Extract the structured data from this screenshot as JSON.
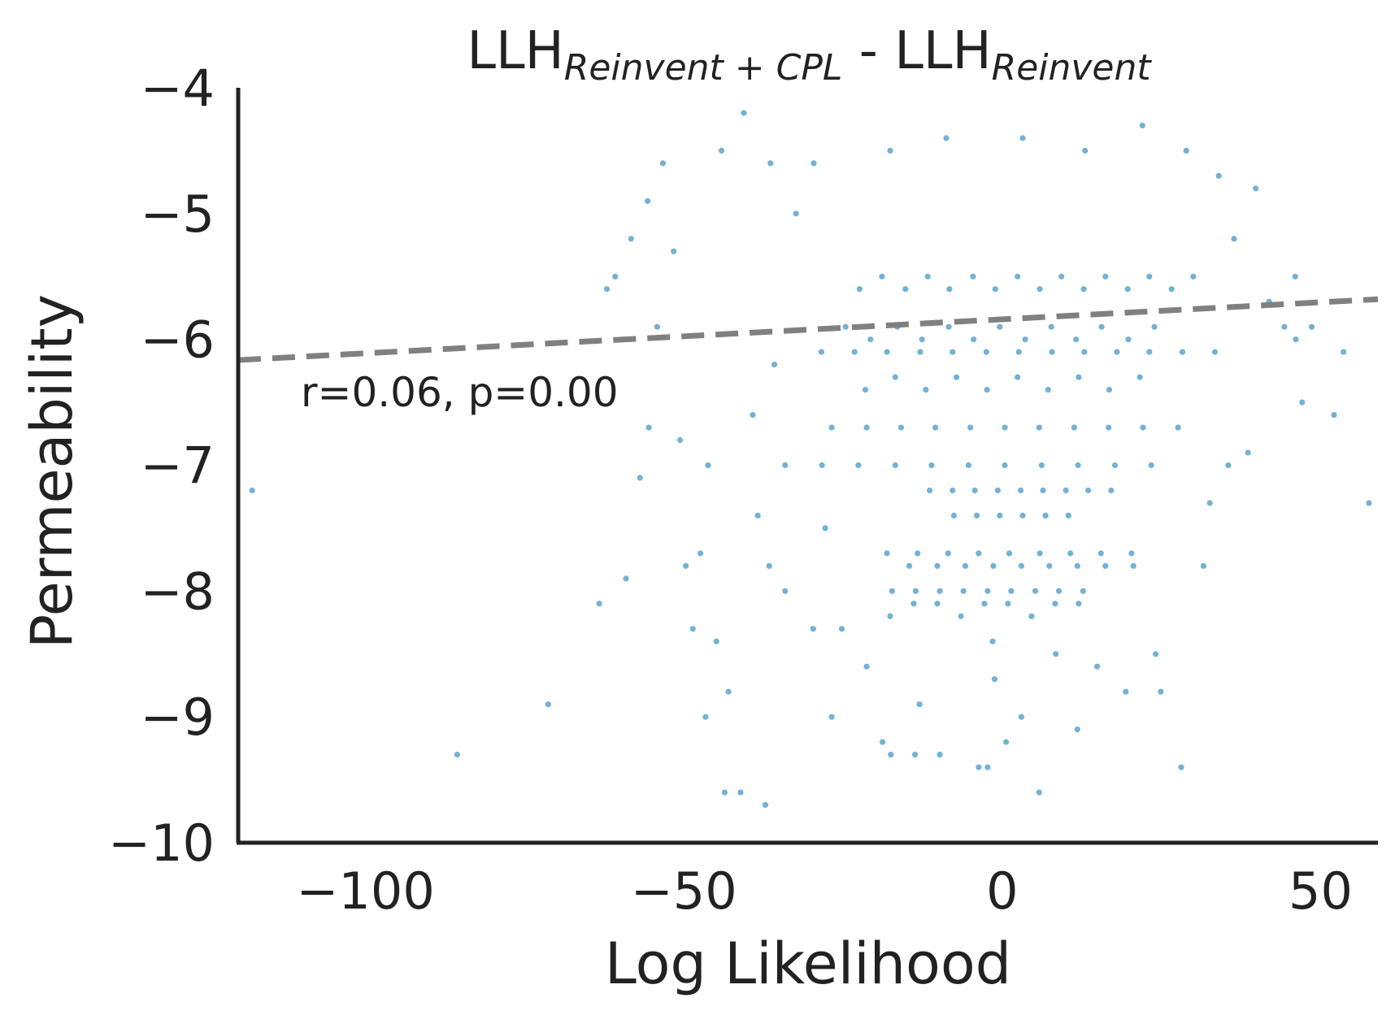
{
  "chart_data": {
    "type": "scatter",
    "title_main": "LLH",
    "title_sub_1": "Reinvent + CPL",
    "title_sep": " - LLH",
    "title_sub_2": "Reinvent",
    "xlabel": "Log Likelihood",
    "ylabel": "Permeability",
    "xlim": [
      -120,
      59
    ],
    "ylim": [
      -10,
      -4
    ],
    "xticks": [
      -100,
      -50,
      0,
      50
    ],
    "xtick_labels": [
      "−100",
      "−50",
      "0",
      "50"
    ],
    "yticks": [
      -4,
      -5,
      -6,
      -7,
      -8,
      -9,
      -10
    ],
    "ytick_labels": [
      "−4",
      "−5",
      "−6",
      "−7",
      "−8",
      "−9",
      "−10"
    ],
    "grid": false,
    "annotation": "r=0.06, p=0.00",
    "regression_line": {
      "slope": 0.0027,
      "intercept": -5.84
    },
    "point_color": "#0072b2",
    "line_color": "#808080",
    "series": [
      {
        "points": [
          [
            -117.8,
            -7.2
          ],
          [
            -85.6,
            -9.3
          ],
          [
            -71.3,
            -8.9
          ],
          [
            -63.3,
            -8.1
          ],
          [
            -59.1,
            -7.9
          ],
          [
            -56.9,
            -7.1
          ],
          [
            -55.5,
            -6.7
          ],
          [
            -54.2,
            -5.9
          ],
          [
            -50.6,
            -6.8
          ],
          [
            -49.7,
            -7.8
          ],
          [
            -48.6,
            -8.3
          ],
          [
            -47.4,
            -7.7
          ],
          [
            -46.6,
            -9.0
          ],
          [
            -46.2,
            -7.0
          ],
          [
            -44.9,
            -8.4
          ],
          [
            -43.6,
            -9.6
          ],
          [
            -43.0,
            -8.8
          ],
          [
            -41.1,
            -9.6
          ],
          [
            -38.4,
            -7.4
          ],
          [
            -37.2,
            -9.7
          ],
          [
            -36.6,
            -7.8
          ],
          [
            -34.1,
            -8.0
          ],
          [
            -29.7,
            -8.3
          ],
          [
            -27.8,
            -7.5
          ],
          [
            -26.8,
            -9.0
          ],
          [
            -25.2,
            -8.3
          ],
          [
            -21.3,
            -8.6
          ],
          [
            -18.8,
            -9.2
          ],
          [
            -17.5,
            -9.3
          ],
          [
            -13.7,
            -9.3
          ],
          [
            -13.0,
            -8.9
          ],
          [
            -9.8,
            -9.3
          ],
          [
            -3.7,
            -9.4
          ],
          [
            -1.5,
            -8.4
          ],
          [
            -2.3,
            -9.4
          ],
          [
            -1.2,
            -8.7
          ],
          [
            0.6,
            -9.2
          ],
          [
            3.0,
            -9.0
          ],
          [
            5.8,
            -9.6
          ],
          [
            8.4,
            -8.5
          ],
          [
            11.8,
            -9.1
          ],
          [
            14.9,
            -8.6
          ],
          [
            19.4,
            -8.8
          ],
          [
            24.1,
            -8.5
          ],
          [
            24.9,
            -8.8
          ],
          [
            28.1,
            -9.4
          ],
          [
            31.6,
            -7.8
          ],
          [
            32.6,
            -7.3
          ],
          [
            46.0,
            -5.5
          ],
          [
            44.3,
            -5.9
          ],
          [
            46.1,
            -6.0
          ],
          [
            47.1,
            -6.5
          ],
          [
            48.6,
            -5.9
          ],
          [
            52.1,
            -6.6
          ],
          [
            53.6,
            -6.1
          ],
          [
            57.6,
            -7.3
          ],
          [
            -62.1,
            -5.6
          ],
          [
            -60.8,
            -5.5
          ],
          [
            -58.3,
            -5.2
          ],
          [
            -55.7,
            -4.9
          ],
          [
            -53.3,
            -4.6
          ],
          [
            -51.6,
            -5.3
          ],
          [
            -44.1,
            -4.5
          ],
          [
            -40.6,
            -4.2
          ],
          [
            -36.4,
            -4.6
          ],
          [
            -35.8,
            -6.2
          ],
          [
            -39.2,
            -6.6
          ],
          [
            -32.4,
            -5.0
          ],
          [
            36.4,
            -5.2
          ],
          [
            39.8,
            -4.8
          ],
          [
            41.9,
            -5.7
          ],
          [
            38.6,
            -6.9
          ],
          [
            35.5,
            -7.0
          ],
          [
            34.0,
            -4.7
          ],
          [
            28.9,
            -4.5
          ],
          [
            22.0,
            -4.3
          ],
          [
            13.0,
            -4.5
          ],
          [
            3.2,
            -4.4
          ],
          [
            -8.8,
            -4.4
          ],
          [
            -17.6,
            -4.5
          ],
          [
            -29.6,
            -4.6
          ],
          [
            -22.4,
            -5.6
          ],
          [
            -18.9,
            -5.5
          ],
          [
            -15.2,
            -5.6
          ],
          [
            -11.7,
            -5.5
          ],
          [
            -8.3,
            -5.6
          ],
          [
            -4.6,
            -5.5
          ],
          [
            -1.1,
            -5.6
          ],
          [
            2.4,
            -5.5
          ],
          [
            5.9,
            -5.6
          ],
          [
            9.3,
            -5.5
          ],
          [
            12.8,
            -5.6
          ],
          [
            16.2,
            -5.5
          ],
          [
            19.7,
            -5.6
          ],
          [
            23.1,
            -5.5
          ],
          [
            26.6,
            -5.6
          ],
          [
            30.0,
            -5.5
          ],
          [
            -24.6,
            -5.9
          ],
          [
            -20.7,
            -6.0
          ],
          [
            -16.5,
            -5.9
          ],
          [
            -12.6,
            -6.0
          ],
          [
            -8.4,
            -5.9
          ],
          [
            -4.5,
            -6.0
          ],
          [
            -0.4,
            -5.9
          ],
          [
            3.6,
            -6.0
          ],
          [
            7.7,
            -5.9
          ],
          [
            11.6,
            -6.0
          ],
          [
            15.6,
            -5.9
          ],
          [
            19.8,
            -6.0
          ],
          [
            23.9,
            -5.9
          ],
          [
            -28.4,
            -6.1
          ],
          [
            -23.2,
            -6.1
          ],
          [
            -18.1,
            -6.1
          ],
          [
            -12.9,
            -6.1
          ],
          [
            -7.8,
            -6.1
          ],
          [
            -2.5,
            -6.1
          ],
          [
            2.6,
            -6.1
          ],
          [
            7.8,
            -6.1
          ],
          [
            12.9,
            -6.1
          ],
          [
            18.0,
            -6.1
          ],
          [
            23.1,
            -6.1
          ],
          [
            28.3,
            -6.1
          ],
          [
            33.4,
            -6.1
          ],
          [
            -21.5,
            -6.4
          ],
          [
            -16.8,
            -6.3
          ],
          [
            -12.0,
            -6.4
          ],
          [
            -7.2,
            -6.3
          ],
          [
            -2.4,
            -6.4
          ],
          [
            2.4,
            -6.3
          ],
          [
            7.2,
            -6.4
          ],
          [
            12.0,
            -6.3
          ],
          [
            16.8,
            -6.4
          ],
          [
            21.6,
            -6.3
          ],
          [
            -26.8,
            -6.7
          ],
          [
            -21.3,
            -6.7
          ],
          [
            -15.9,
            -6.7
          ],
          [
            -10.5,
            -6.7
          ],
          [
            -5.0,
            -6.7
          ],
          [
            0.4,
            -6.7
          ],
          [
            5.8,
            -6.7
          ],
          [
            11.3,
            -6.7
          ],
          [
            16.7,
            -6.7
          ],
          [
            22.1,
            -6.7
          ],
          [
            27.6,
            -6.7
          ],
          [
            -34.1,
            -7.0
          ],
          [
            -28.3,
            -7.0
          ],
          [
            -22.6,
            -7.0
          ],
          [
            -16.8,
            -7.0
          ],
          [
            -11.1,
            -7.0
          ],
          [
            -5.3,
            -7.0
          ],
          [
            0.4,
            -7.0
          ],
          [
            6.2,
            -7.0
          ],
          [
            11.9,
            -7.0
          ],
          [
            17.7,
            -7.0
          ],
          [
            23.4,
            -7.0
          ],
          [
            -11.4,
            -7.2
          ],
          [
            -7.8,
            -7.2
          ],
          [
            -4.3,
            -7.2
          ],
          [
            -0.7,
            -7.2
          ],
          [
            2.9,
            -7.2
          ],
          [
            6.4,
            -7.2
          ],
          [
            10.0,
            -7.2
          ],
          [
            13.5,
            -7.2
          ],
          [
            17.1,
            -7.2
          ],
          [
            -7.6,
            -7.4
          ],
          [
            -4.0,
            -7.4
          ],
          [
            -0.4,
            -7.4
          ],
          [
            3.2,
            -7.4
          ],
          [
            6.8,
            -7.4
          ],
          [
            10.4,
            -7.4
          ],
          [
            -18.1,
            -7.7
          ],
          [
            -13.3,
            -7.7
          ],
          [
            -8.5,
            -7.7
          ],
          [
            -3.7,
            -7.7
          ],
          [
            1.1,
            -7.7
          ],
          [
            5.9,
            -7.7
          ],
          [
            10.7,
            -7.7
          ],
          [
            15.5,
            -7.7
          ],
          [
            20.3,
            -7.7
          ],
          [
            -14.6,
            -7.8
          ],
          [
            -10.2,
            -7.8
          ],
          [
            -5.8,
            -7.8
          ],
          [
            -1.4,
            -7.8
          ],
          [
            3.0,
            -7.8
          ],
          [
            7.4,
            -7.8
          ],
          [
            11.8,
            -7.8
          ],
          [
            16.2,
            -7.8
          ],
          [
            20.6,
            -7.8
          ],
          [
            -17.3,
            -8.0
          ],
          [
            -13.6,
            -8.0
          ],
          [
            -9.8,
            -8.0
          ],
          [
            -6.1,
            -8.0
          ],
          [
            -2.3,
            -8.0
          ],
          [
            1.4,
            -8.0
          ],
          [
            5.2,
            -8.0
          ],
          [
            8.9,
            -8.0
          ],
          [
            12.7,
            -8.0
          ],
          [
            -17.6,
            -8.2
          ],
          [
            -13.9,
            -8.1
          ],
          [
            -10.2,
            -8.1
          ],
          [
            -6.5,
            -8.2
          ],
          [
            -2.8,
            -8.1
          ],
          [
            0.9,
            -8.1
          ],
          [
            4.6,
            -8.2
          ],
          [
            8.3,
            -8.1
          ],
          [
            12.0,
            -8.1
          ]
        ]
      }
    ]
  }
}
